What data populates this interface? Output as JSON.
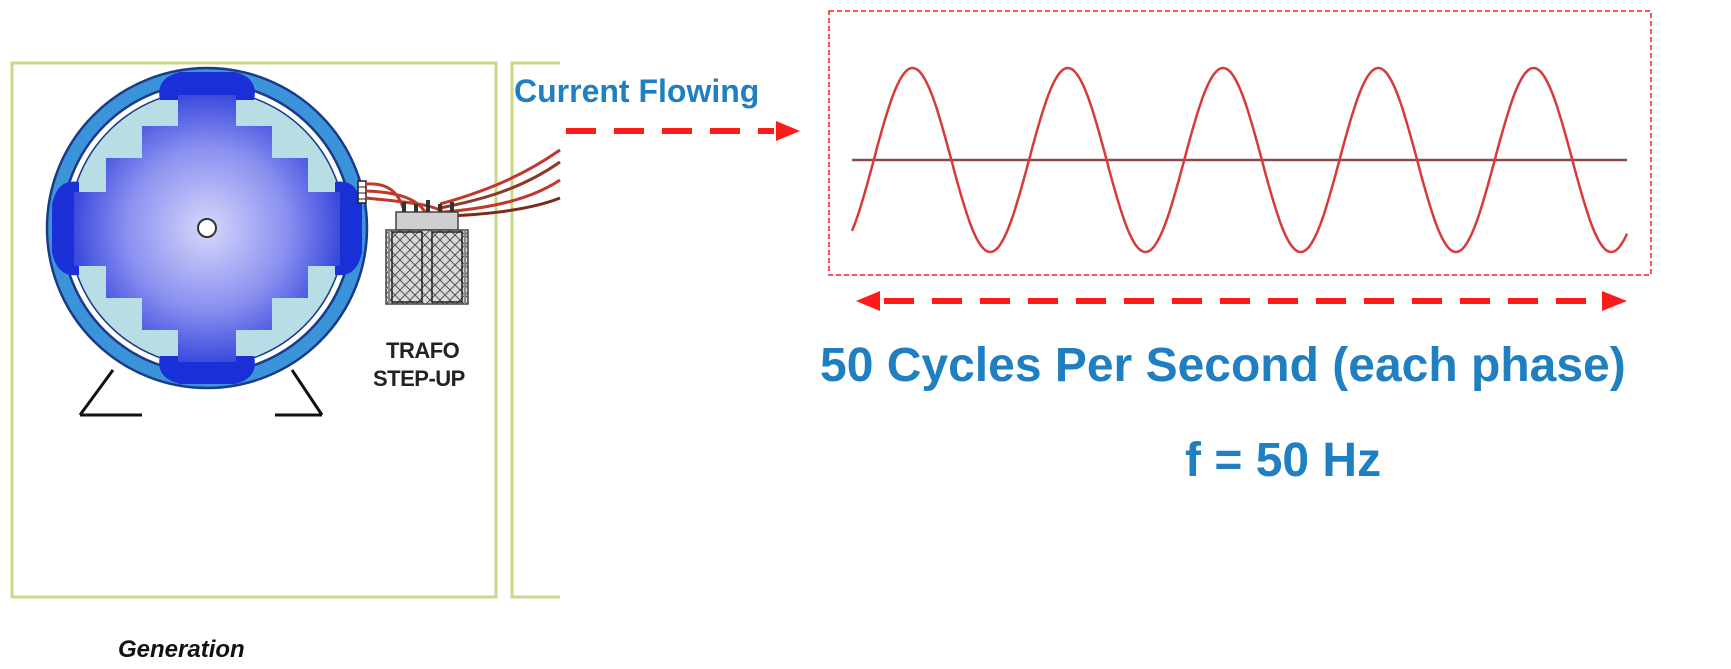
{
  "labels": {
    "current_flowing": "Current Flowing",
    "cycles_per_second": "50 Cycles Per Second (each phase)",
    "frequency": "f = 50 Hz",
    "trafo_line1": "TRAFO",
    "trafo_line2": "STEP-UP",
    "generation": "Generation"
  },
  "waveform": {
    "cycles": 5,
    "frequency_hz": 50
  },
  "colors": {
    "label_blue": "#1f7fc0",
    "arrow_red": "#ff1a1a",
    "wave_red": "#d63a3a",
    "axis_brown": "#8b4a4a",
    "generator_ring": "#3b93d9",
    "rotor_blue": "#1a2fd6",
    "panel_green": "#c8d98a",
    "wire_red": "#c0392b"
  }
}
